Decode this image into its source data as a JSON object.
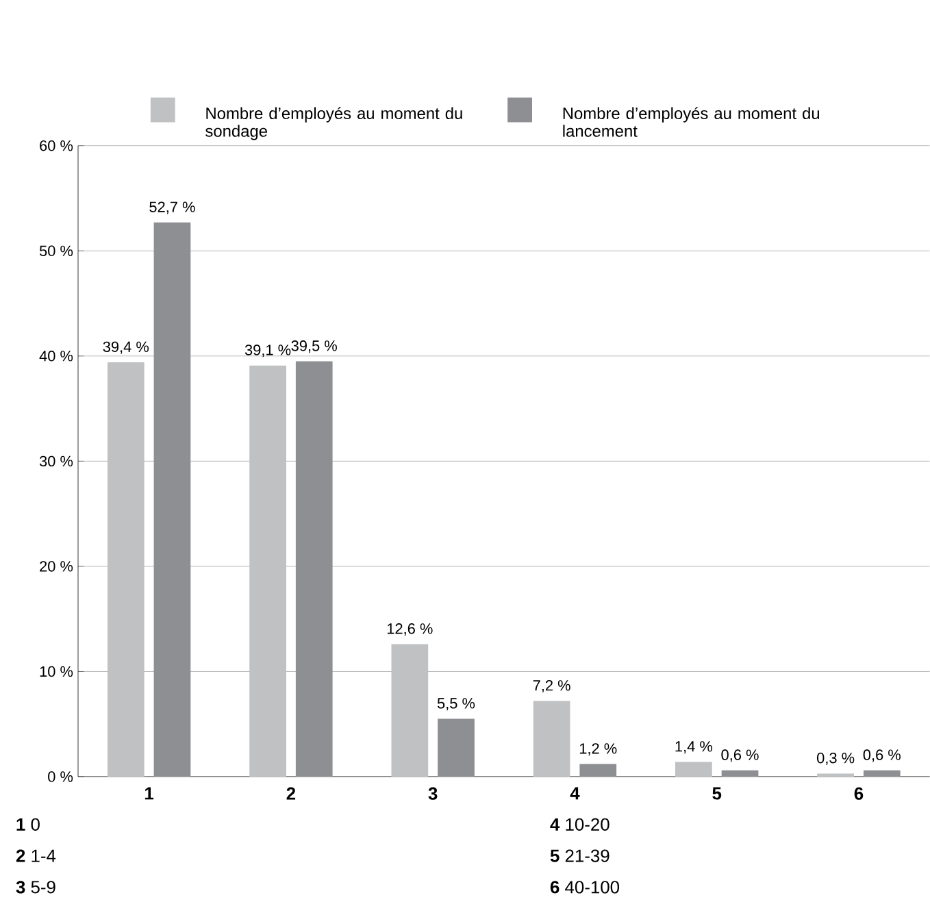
{
  "chart_data": {
    "type": "bar",
    "categories": [
      "1",
      "2",
      "3",
      "4",
      "5",
      "6"
    ],
    "series": [
      {
        "name": "Nombre d’employés au moment du sondage",
        "color": "#c0c1c3",
        "values": [
          39.4,
          39.1,
          12.6,
          7.2,
          1.4,
          0.3
        ],
        "value_labels": [
          "39,4 %",
          "39,1 %",
          "12,6 %",
          "7,2 %",
          "1,4 %",
          "0,3 %"
        ]
      },
      {
        "name": "Nombre d’employés au moment du lancement",
        "color": "#8e8f92",
        "values": [
          52.7,
          39.5,
          5.5,
          1.2,
          0.6,
          0.6
        ],
        "value_labels": [
          "52,7 %",
          "39,5 %",
          "5,5 %",
          "1,2 %",
          "0,6 %",
          "0,6 %"
        ]
      }
    ],
    "ylim": [
      0,
      60
    ],
    "yticks": [
      {
        "value": 0,
        "label": "0 %"
      },
      {
        "value": 10,
        "label": "10 %"
      },
      {
        "value": 20,
        "label": "20 %"
      },
      {
        "value": 30,
        "label": "30 %"
      },
      {
        "value": 40,
        "label": "40 %"
      },
      {
        "value": 50,
        "label": "50 %"
      },
      {
        "value": 60,
        "label": "60 %"
      }
    ],
    "grid": "y",
    "legend": "top",
    "annotations": [
      "**1**  0",
      "**2**  1-4",
      "**3**  5-9",
      "**4**  10-20",
      "**5**  21-39",
      "**6**  40-100"
    ]
  }
}
